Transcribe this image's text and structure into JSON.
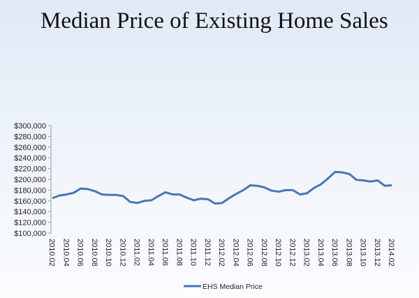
{
  "chart_data": {
    "type": "line",
    "title": "Median Price of Existing Home Sales",
    "xlabel": "",
    "ylabel": "",
    "ylim": [
      100000,
      300000
    ],
    "y_ticks": [
      "$100,000",
      "$120,000",
      "$140,000",
      "$160,000",
      "$180,000",
      "$200,000",
      "$220,000",
      "$240,000",
      "$260,000",
      "$280,000",
      "$300,000"
    ],
    "x_tick_labels": [
      "2010.02",
      "2010.04",
      "2010.06",
      "2010.08",
      "2010.10",
      "2010.12",
      "2011.02",
      "2011.04",
      "2011.06",
      "2011.08",
      "2011.10",
      "2011.12",
      "2012.02",
      "2012.04",
      "2012.06",
      "2012.08",
      "2012.10",
      "2012.12",
      "2013.02",
      "2013.04",
      "2013.06",
      "2013.08",
      "2013.10",
      "2013.12",
      "2014.02"
    ],
    "legend": {
      "position": "bottom"
    },
    "grid": false,
    "series": [
      {
        "name": "EHS Median Price",
        "color": "#4a76b4",
        "values": [
          165000,
          170000,
          172000,
          175000,
          183000,
          182000,
          178000,
          172000,
          171000,
          171000,
          169000,
          158000,
          156000,
          160000,
          161000,
          169000,
          176000,
          172000,
          172000,
          166000,
          161000,
          164000,
          163000,
          155000,
          156000,
          165000,
          173000,
          180000,
          189000,
          188000,
          185000,
          179000,
          177000,
          180000,
          180000,
          172000,
          174000,
          184000,
          191000,
          202000,
          214000,
          213000,
          210000,
          199000,
          198000,
          196000,
          198000,
          188000,
          189000
        ]
      }
    ]
  }
}
